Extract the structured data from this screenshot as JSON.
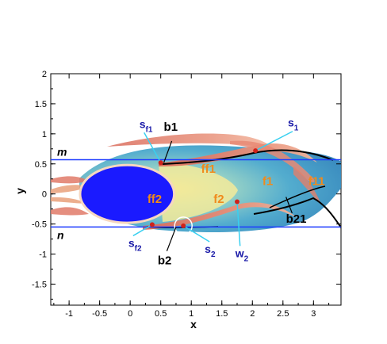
{
  "chart_data": {
    "type": "contour",
    "xlabel": "x",
    "ylabel": "y",
    "xlim": [
      -1.3,
      3.45
    ],
    "ylim": [
      -1.85,
      2.0
    ],
    "xticks": [
      "-1",
      "-0.5",
      "0",
      "0.5",
      "1",
      "1.5",
      "2",
      "2.5",
      "3"
    ],
    "yticks": [
      "2",
      "1.5",
      "1",
      "0.5",
      "0",
      "-0.5",
      "-1",
      "-1.5"
    ],
    "lines": [
      {
        "label": "m",
        "y": 0.57
      },
      {
        "label": "n",
        "y": -0.55
      }
    ],
    "cylinder": {
      "cx": -0.05,
      "cy": 0.0,
      "rx": 0.77,
      "ry": 0.48
    },
    "points": [
      {
        "label": "s_f1",
        "x": 0.5,
        "y": 0.52
      },
      {
        "label": "s_1",
        "x": 2.05,
        "y": 0.72
      },
      {
        "label": "w_2",
        "x": 1.75,
        "y": -0.13
      },
      {
        "label": "s_2",
        "x": 0.87,
        "y": -0.53
      },
      {
        "label": "s_f2",
        "x": 0.36,
        "y": -0.51
      }
    ],
    "annotations_black": [
      {
        "text": "b1",
        "x": 0.55,
        "y": 1.05
      },
      {
        "text": "b2",
        "x": 0.45,
        "y": -1.17
      },
      {
        "text": "b21",
        "x": 2.55,
        "y": -0.48
      }
    ],
    "annotations_blue": [
      {
        "main": "s",
        "sub": "f1",
        "x": 0.15,
        "y": 1.1
      },
      {
        "main": "s",
        "sub": "1",
        "x": 2.58,
        "y": 1.12
      },
      {
        "main": "w",
        "sub": "2",
        "x": 1.72,
        "y": -1.05
      },
      {
        "main": "s",
        "sub": "2",
        "x": 1.22,
        "y": -0.98
      },
      {
        "main": "s",
        "sub": "f2",
        "x": -0.03,
        "y": -0.88
      }
    ],
    "annotations_orange": [
      {
        "text": "ff1",
        "x": 1.28,
        "y": 0.35
      },
      {
        "text": "ff2",
        "x": 0.4,
        "y": -0.15
      },
      {
        "text": "f2",
        "x": 1.45,
        "y": -0.15
      },
      {
        "text": "f1",
        "x": 2.25,
        "y": 0.15
      },
      {
        "text": "f11",
        "x": 3.05,
        "y": 0.15
      }
    ]
  }
}
